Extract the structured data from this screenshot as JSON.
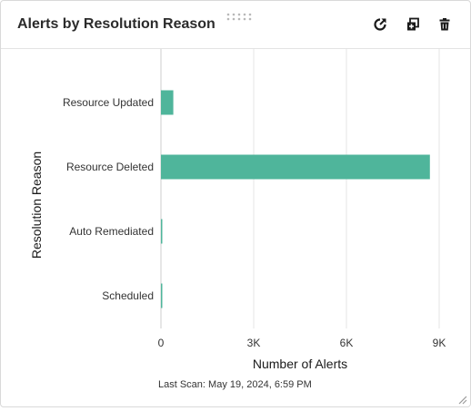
{
  "widget": {
    "title": "Alerts by Resolution Reason",
    "toolbar": {
      "refresh_icon": "refresh-chart-icon",
      "copy_icon": "duplicate-icon",
      "delete_icon": "trash-icon"
    },
    "last_scan_label": "Last Scan:",
    "last_scan_value": "May 19, 2024, 6:59 PM"
  },
  "colors": {
    "bar": "#4fb59b",
    "grid": "#e6e6e6",
    "axis_text": "#333333",
    "title_text": "#2b2b2b"
  },
  "chart_data": {
    "type": "bar",
    "orientation": "horizontal",
    "categories": [
      "Resource Updated",
      "Resource Deleted",
      "Auto Remediated",
      "Scheduled"
    ],
    "values": [
      400,
      8700,
      10,
      10
    ],
    "xlabel": "Number of Alerts",
    "ylabel": "Resolution Reason",
    "xlim": [
      0,
      9000
    ],
    "x_ticks": [
      0,
      3000,
      6000,
      9000
    ],
    "x_tick_labels": [
      "0",
      "3K",
      "6K",
      "9K"
    ],
    "grid": true,
    "legend": "none"
  }
}
